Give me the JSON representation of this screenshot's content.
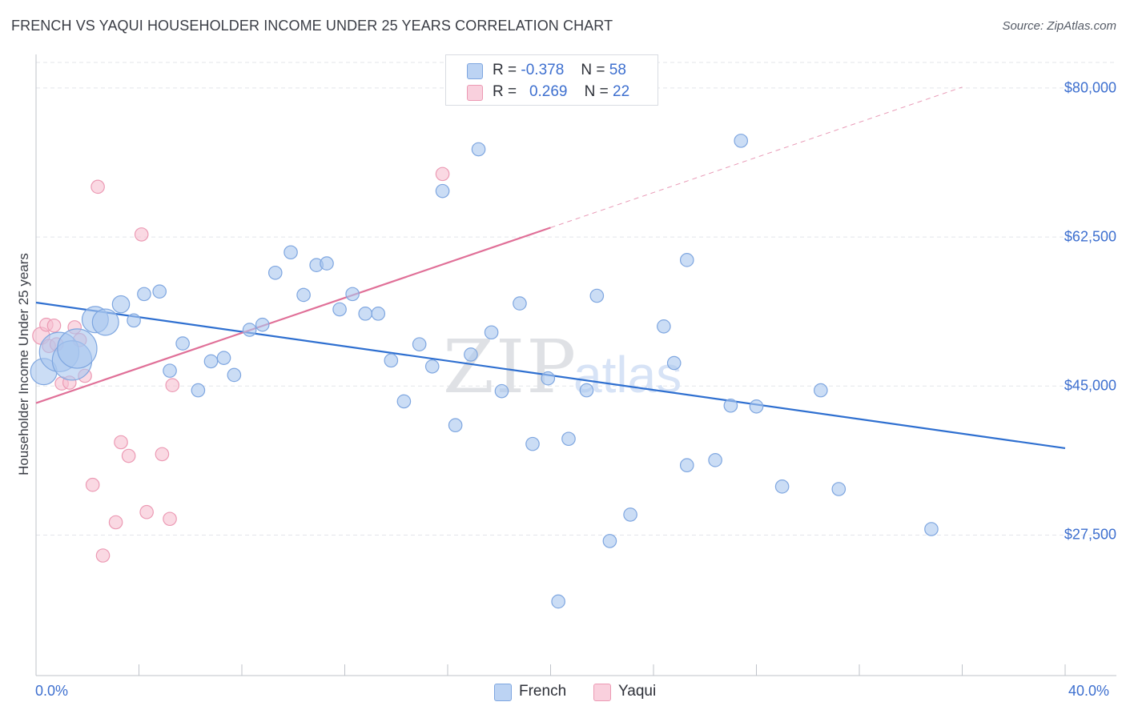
{
  "title": "FRENCH VS YAQUI HOUSEHOLDER INCOME UNDER 25 YEARS CORRELATION CHART",
  "source": "Source: ZipAtlas.com",
  "watermark": {
    "zip": "ZIP",
    "atlas": "atlas"
  },
  "legend": {
    "rows": [
      {
        "r_label": "R =",
        "r_value": "-0.378",
        "n_label": "N =",
        "n_value": "58"
      },
      {
        "r_label": "R =",
        "r_value": "0.269",
        "n_label": "N =",
        "n_value": "22"
      }
    ]
  },
  "colors": {
    "french_fill": "#a9c6ee",
    "french_stroke": "#7ea6e0",
    "french_line": "#2e6fd0",
    "yaqui_fill": "#f6c0d0",
    "yaqui_stroke": "#ec9ab4",
    "yaqui_line": "#e07098",
    "axis_text": "#3d6fcf",
    "grid": "#e3e5ea"
  },
  "chart_data": {
    "type": "scatter",
    "title": "FRENCH VS YAQUI HOUSEHOLDER INCOME UNDER 25 YEARS CORRELATION CHART",
    "xlabel": "",
    "ylabel": "Householder Income Under 25 years",
    "xlim": [
      0,
      40
    ],
    "ylim": [
      11000,
      83000
    ],
    "x_tick_labels": [
      "0.0%",
      "40.0%"
    ],
    "y_ticks": [
      27500,
      45000,
      62500,
      80000
    ],
    "y_tick_labels": [
      "$27,500",
      "$45,000",
      "$62,500",
      "$80,000"
    ],
    "grid": true,
    "legend_position": "top-center and bottom",
    "series": [
      {
        "name": "French",
        "r": -0.378,
        "n": 58,
        "trend": {
          "x": [
            0,
            40
          ],
          "y": [
            54800,
            37700
          ]
        },
        "points": [
          {
            "x": 0.3,
            "y": 46700,
            "s": 2
          },
          {
            "x": 0.9,
            "y": 49000,
            "s": 3
          },
          {
            "x": 1.4,
            "y": 48000,
            "s": 3
          },
          {
            "x": 1.6,
            "y": 49400,
            "s": 3
          },
          {
            "x": 2.3,
            "y": 52800,
            "s": 2
          },
          {
            "x": 2.7,
            "y": 52500,
            "s": 2
          },
          {
            "x": 3.3,
            "y": 54600,
            "s": 1.3
          },
          {
            "x": 3.8,
            "y": 52700,
            "s": 1
          },
          {
            "x": 4.2,
            "y": 55800,
            "s": 1
          },
          {
            "x": 4.8,
            "y": 56100,
            "s": 1
          },
          {
            "x": 5.2,
            "y": 46800,
            "s": 1
          },
          {
            "x": 5.7,
            "y": 50000,
            "s": 1
          },
          {
            "x": 6.3,
            "y": 44500,
            "s": 1
          },
          {
            "x": 6.8,
            "y": 47900,
            "s": 1
          },
          {
            "x": 7.3,
            "y": 48300,
            "s": 1
          },
          {
            "x": 7.7,
            "y": 46300,
            "s": 1
          },
          {
            "x": 8.3,
            "y": 51600,
            "s": 1
          },
          {
            "x": 8.8,
            "y": 52200,
            "s": 1
          },
          {
            "x": 9.3,
            "y": 58300,
            "s": 1
          },
          {
            "x": 9.9,
            "y": 60700,
            "s": 1
          },
          {
            "x": 10.4,
            "y": 55700,
            "s": 1
          },
          {
            "x": 10.9,
            "y": 59200,
            "s": 1
          },
          {
            "x": 11.3,
            "y": 59400,
            "s": 1
          },
          {
            "x": 11.8,
            "y": 54000,
            "s": 1
          },
          {
            "x": 12.3,
            "y": 55800,
            "s": 1
          },
          {
            "x": 12.8,
            "y": 53500,
            "s": 1
          },
          {
            "x": 13.3,
            "y": 53500,
            "s": 1
          },
          {
            "x": 13.8,
            "y": 48000,
            "s": 1
          },
          {
            "x": 14.3,
            "y": 43200,
            "s": 1
          },
          {
            "x": 14.9,
            "y": 49900,
            "s": 1
          },
          {
            "x": 15.4,
            "y": 47300,
            "s": 1
          },
          {
            "x": 15.8,
            "y": 67900,
            "s": 1
          },
          {
            "x": 16.3,
            "y": 40400,
            "s": 1
          },
          {
            "x": 16.9,
            "y": 48700,
            "s": 1
          },
          {
            "x": 17.2,
            "y": 72800,
            "s": 1
          },
          {
            "x": 17.7,
            "y": 51300,
            "s": 1
          },
          {
            "x": 18.1,
            "y": 44400,
            "s": 1
          },
          {
            "x": 18.8,
            "y": 54700,
            "s": 1
          },
          {
            "x": 19.3,
            "y": 38200,
            "s": 1
          },
          {
            "x": 19.9,
            "y": 45900,
            "s": 1
          },
          {
            "x": 20.3,
            "y": 19700,
            "s": 1
          },
          {
            "x": 20.7,
            "y": 38800,
            "s": 1
          },
          {
            "x": 21.4,
            "y": 44500,
            "s": 1
          },
          {
            "x": 21.8,
            "y": 55600,
            "s": 1
          },
          {
            "x": 22.3,
            "y": 26800,
            "s": 1
          },
          {
            "x": 23.1,
            "y": 29900,
            "s": 1
          },
          {
            "x": 24.4,
            "y": 52000,
            "s": 1
          },
          {
            "x": 24.8,
            "y": 47700,
            "s": 1
          },
          {
            "x": 25.3,
            "y": 35700,
            "s": 1
          },
          {
            "x": 25.3,
            "y": 59800,
            "s": 1
          },
          {
            "x": 26.4,
            "y": 36300,
            "s": 1
          },
          {
            "x": 27.0,
            "y": 42700,
            "s": 1
          },
          {
            "x": 27.4,
            "y": 73800,
            "s": 1
          },
          {
            "x": 28.0,
            "y": 42600,
            "s": 1
          },
          {
            "x": 29.0,
            "y": 33200,
            "s": 1
          },
          {
            "x": 30.5,
            "y": 44500,
            "s": 1
          },
          {
            "x": 31.2,
            "y": 32900,
            "s": 1
          },
          {
            "x": 34.8,
            "y": 28200,
            "s": 1
          }
        ]
      },
      {
        "name": "Yaqui",
        "r": 0.269,
        "n": 22,
        "trend": {
          "x": [
            0,
            20
          ],
          "y": [
            43000,
            63600
          ]
        },
        "trend_dashed": {
          "x": [
            20,
            36
          ],
          "y": [
            63600,
            80100
          ]
        },
        "points": [
          {
            "x": 0.2,
            "y": 50900,
            "s": 1.3
          },
          {
            "x": 0.4,
            "y": 52200,
            "s": 1
          },
          {
            "x": 0.5,
            "y": 49700,
            "s": 1
          },
          {
            "x": 0.7,
            "y": 52100,
            "s": 1
          },
          {
            "x": 0.8,
            "y": 49900,
            "s": 1
          },
          {
            "x": 1.0,
            "y": 45300,
            "s": 1
          },
          {
            "x": 1.3,
            "y": 45400,
            "s": 1
          },
          {
            "x": 1.5,
            "y": 51900,
            "s": 1
          },
          {
            "x": 1.7,
            "y": 50400,
            "s": 1
          },
          {
            "x": 1.9,
            "y": 46200,
            "s": 1
          },
          {
            "x": 2.2,
            "y": 33400,
            "s": 1
          },
          {
            "x": 2.4,
            "y": 68400,
            "s": 1
          },
          {
            "x": 2.6,
            "y": 25100,
            "s": 1
          },
          {
            "x": 3.1,
            "y": 29000,
            "s": 1
          },
          {
            "x": 3.3,
            "y": 38400,
            "s": 1
          },
          {
            "x": 3.6,
            "y": 36800,
            "s": 1
          },
          {
            "x": 4.1,
            "y": 62800,
            "s": 1
          },
          {
            "x": 4.3,
            "y": 30200,
            "s": 1
          },
          {
            "x": 4.9,
            "y": 37000,
            "s": 1
          },
          {
            "x": 5.2,
            "y": 29400,
            "s": 1
          },
          {
            "x": 5.3,
            "y": 45100,
            "s": 1
          },
          {
            "x": 15.8,
            "y": 69900,
            "s": 1
          }
        ]
      }
    ]
  }
}
